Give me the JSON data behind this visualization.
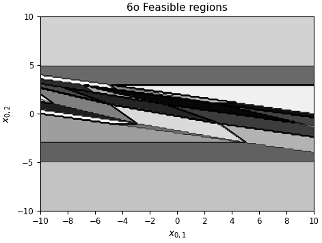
{
  "title": "6o Feasible regions",
  "xlabel": "$x_{0,1}$",
  "ylabel": "$x_{0,2}$",
  "xlim": [
    -10,
    10
  ],
  "ylim": [
    -10,
    10
  ],
  "xticks": [
    -10,
    -8,
    -6,
    -4,
    -2,
    0,
    2,
    4,
    6,
    8,
    10
  ],
  "yticks": [
    -10,
    -5,
    0,
    5,
    10
  ],
  "figsize": [
    4.71,
    3.55
  ],
  "dpi": 100,
  "N": 5,
  "u_max": 1.0,
  "x_max": 10.0
}
